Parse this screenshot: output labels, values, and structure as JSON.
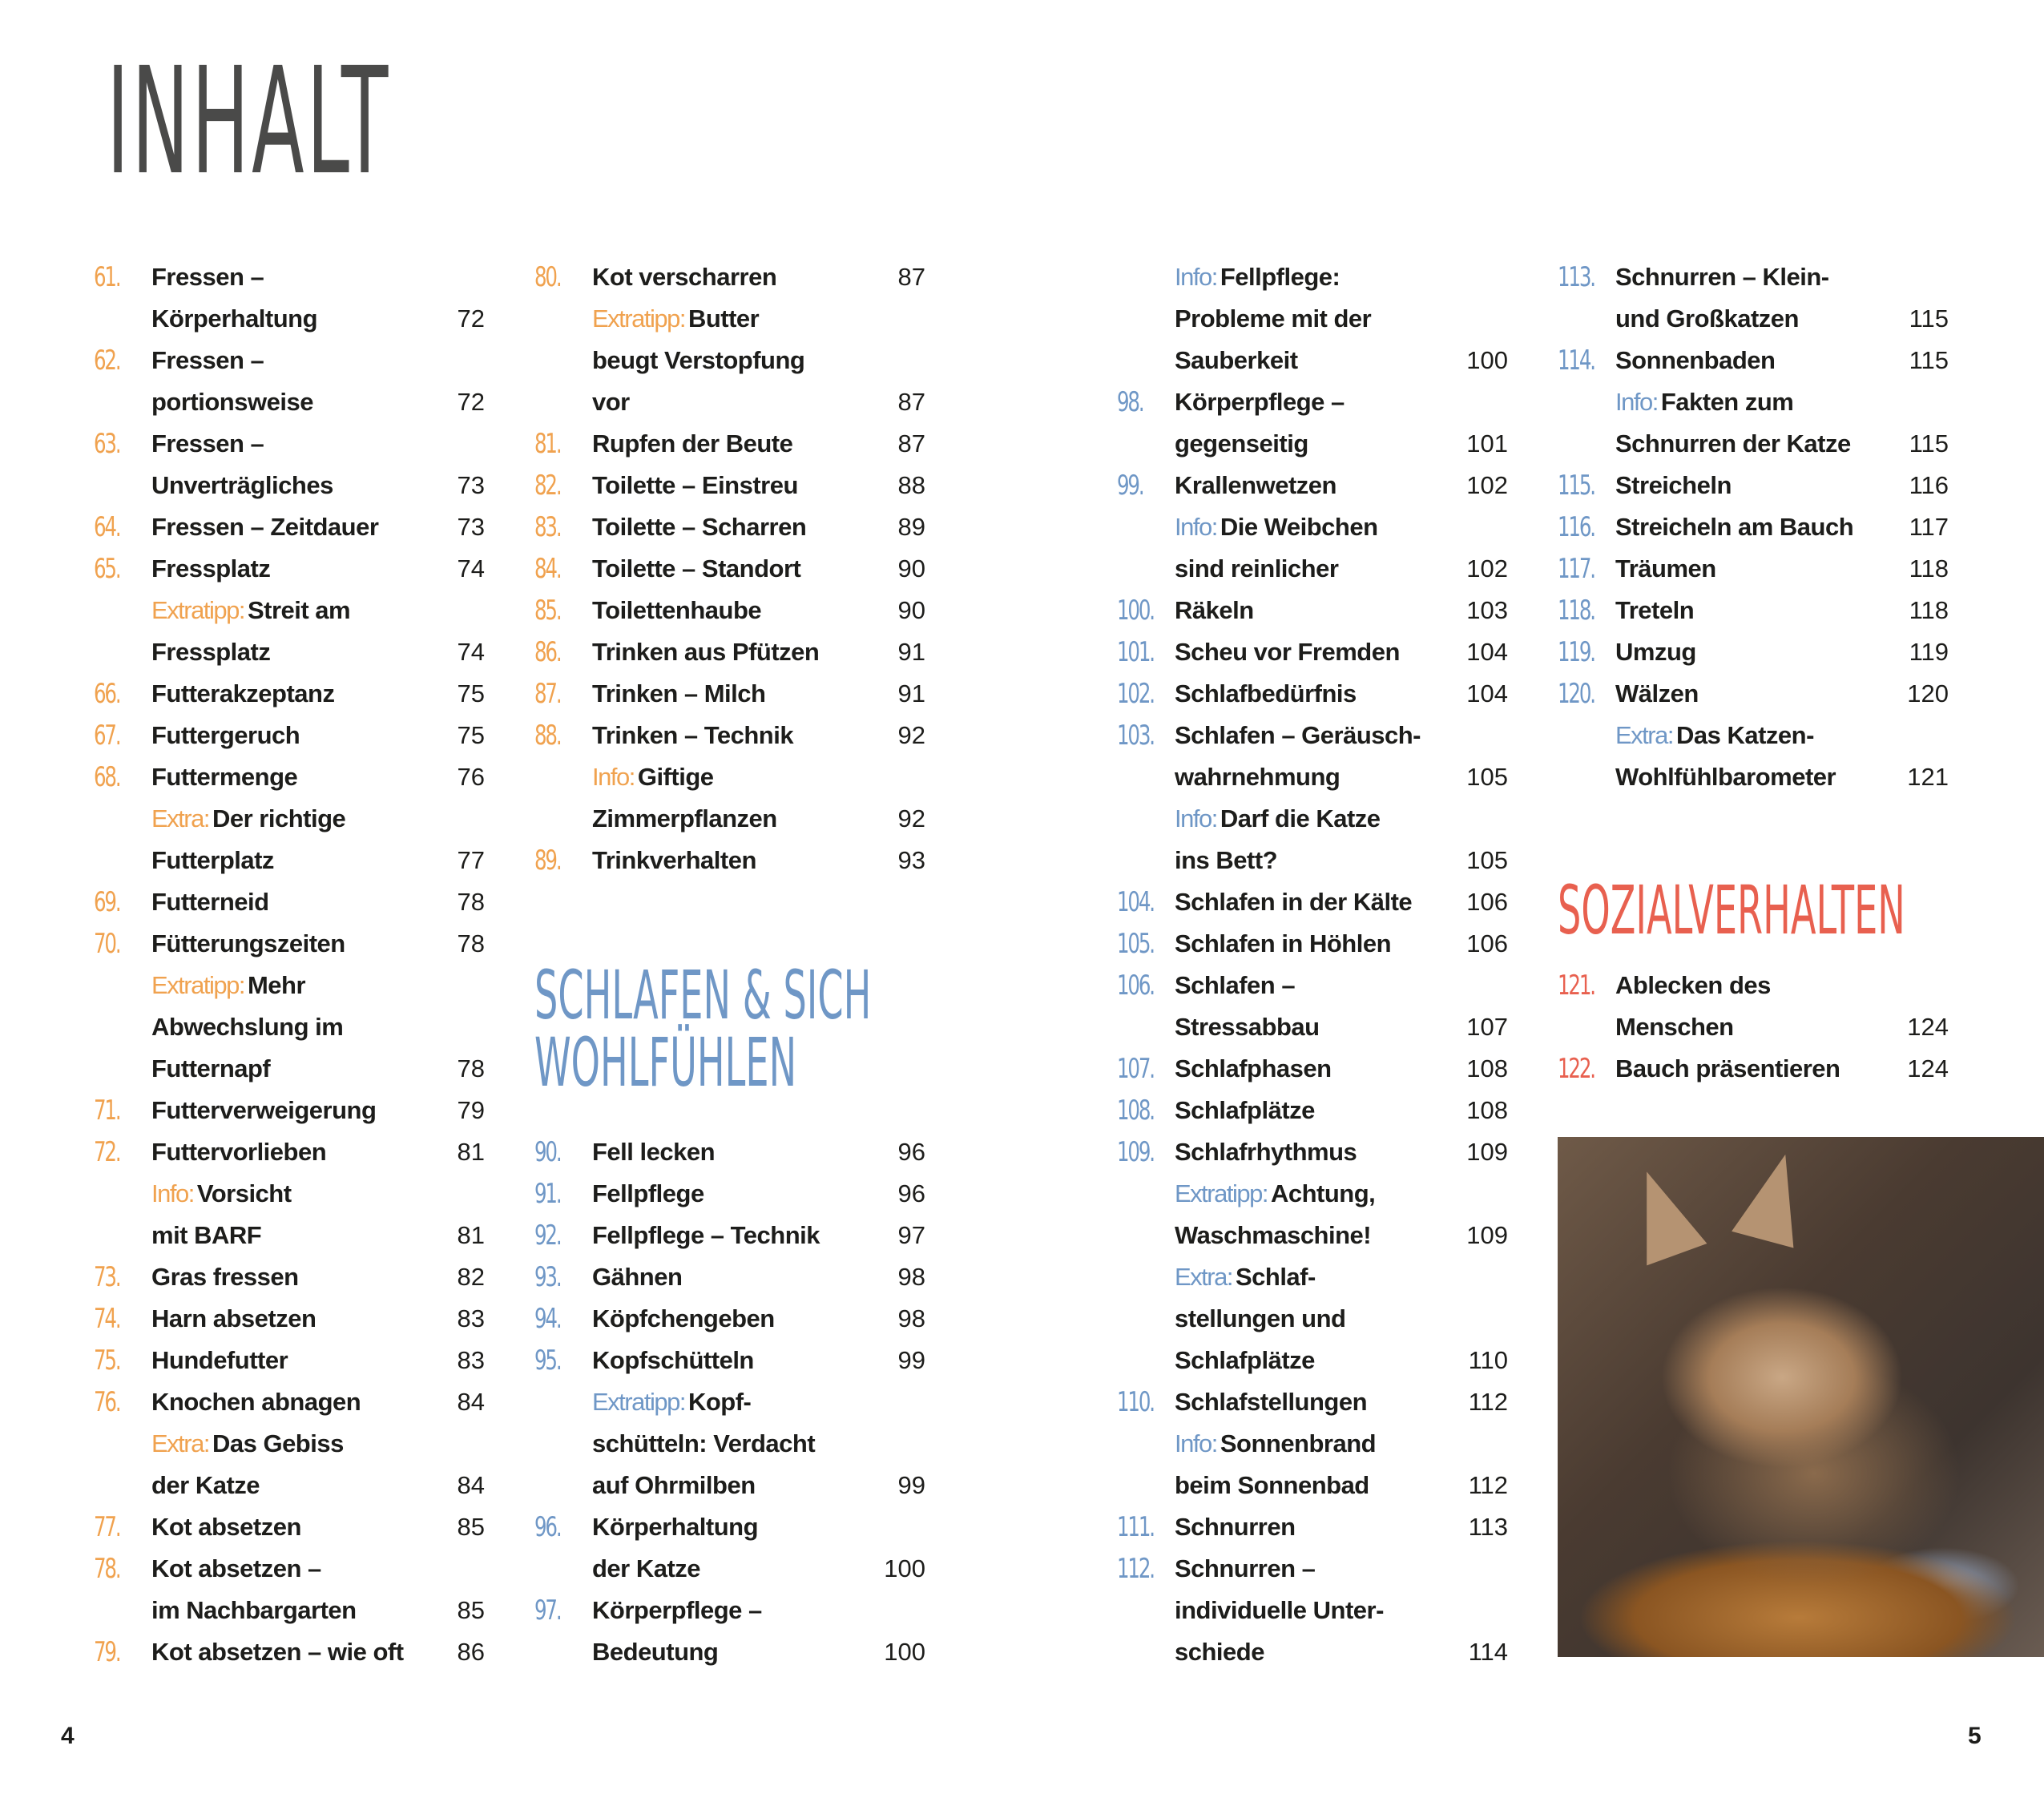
{
  "title": "INHALT",
  "colors": {
    "orange": "#f0a24f",
    "blue": "#6f97c6",
    "red": "#e8604f",
    "title": "#4a4a49",
    "text": "#1d1d1b"
  },
  "folios": {
    "left": "4",
    "right": "5"
  },
  "photo": {
    "icon": "cat-in-basket-photo"
  },
  "columns": [
    {
      "sections": [
        {
          "color": "orange",
          "entries": [
            {
              "num": "61.",
              "lines": [
                "Fressen –",
                "Körperhaltung"
              ],
              "page": "72"
            },
            {
              "num": "62.",
              "lines": [
                "Fressen –",
                "portionsweise"
              ],
              "page": "72"
            },
            {
              "num": "63.",
              "lines": [
                "Fressen –",
                "Unverträgliches"
              ],
              "page": "73"
            },
            {
              "num": "64.",
              "lines": [
                "Fressen – Zeitdauer"
              ],
              "page": "73"
            },
            {
              "num": "65.",
              "lines": [
                "Fressplatz"
              ],
              "page": "74"
            },
            {
              "tag": "Extratipp:",
              "lines": [
                "Streit am",
                "Fressplatz"
              ],
              "page": "74"
            },
            {
              "num": "66.",
              "lines": [
                "Futterakzeptanz"
              ],
              "page": "75"
            },
            {
              "num": "67.",
              "lines": [
                "Futtergeruch"
              ],
              "page": "75"
            },
            {
              "num": "68.",
              "lines": [
                "Futtermenge"
              ],
              "page": "76"
            },
            {
              "tag": "Extra:",
              "lines": [
                "Der richtige",
                "Futterplatz"
              ],
              "page": "77"
            },
            {
              "num": "69.",
              "lines": [
                "Futterneid"
              ],
              "page": "78"
            },
            {
              "num": "70.",
              "lines": [
                "Fütterungszeiten"
              ],
              "page": "78"
            },
            {
              "tag": "Extratipp:",
              "lines": [
                "Mehr",
                "Abwechslung im",
                "Futternapf"
              ],
              "page": "78"
            },
            {
              "num": "71.",
              "lines": [
                "Futterverweigerung"
              ],
              "page": "79"
            },
            {
              "num": "72.",
              "lines": [
                "Futtervorlieben"
              ],
              "page": "81"
            },
            {
              "tag": "Info:",
              "lines": [
                "Vorsicht",
                "mit BARF"
              ],
              "page": "81"
            },
            {
              "num": "73.",
              "lines": [
                "Gras fressen"
              ],
              "page": "82"
            },
            {
              "num": "74.",
              "lines": [
                "Harn absetzen"
              ],
              "page": "83"
            },
            {
              "num": "75.",
              "lines": [
                "Hundefutter"
              ],
              "page": "83"
            },
            {
              "num": "76.",
              "lines": [
                "Knochen abnagen"
              ],
              "page": "84"
            },
            {
              "tag": "Extra:",
              "lines": [
                "Das Gebiss",
                "der Katze"
              ],
              "page": "84"
            },
            {
              "num": "77.",
              "lines": [
                "Kot absetzen"
              ],
              "page": "85"
            },
            {
              "num": "78.",
              "lines": [
                "Kot absetzen –",
                "im Nachbargarten"
              ],
              "page": "85"
            },
            {
              "num": "79.",
              "lines": [
                "Kot absetzen – wie oft"
              ],
              "page": "86"
            }
          ]
        }
      ]
    },
    {
      "sections": [
        {
          "color": "orange",
          "entries": [
            {
              "num": "80.",
              "lines": [
                "Kot verscharren"
              ],
              "page": "87"
            },
            {
              "tag": "Extratipp:",
              "lines": [
                "Butter",
                "beugt Verstopfung",
                "vor"
              ],
              "page": "87"
            },
            {
              "num": "81.",
              "lines": [
                "Rupfen der Beute"
              ],
              "page": "87"
            },
            {
              "num": "82.",
              "lines": [
                "Toilette – Einstreu"
              ],
              "page": "88"
            },
            {
              "num": "83.",
              "lines": [
                "Toilette – Scharren"
              ],
              "page": "89"
            },
            {
              "num": "84.",
              "lines": [
                "Toilette – Standort"
              ],
              "page": "90"
            },
            {
              "num": "85.",
              "lines": [
                "Toilettenhaube"
              ],
              "page": "90"
            },
            {
              "num": "86.",
              "lines": [
                "Trinken aus Pfützen"
              ],
              "page": "91"
            },
            {
              "num": "87.",
              "lines": [
                "Trinken – Milch"
              ],
              "page": "91"
            },
            {
              "num": "88.",
              "lines": [
                "Trinken – Technik"
              ],
              "page": "92"
            },
            {
              "tag": "Info:",
              "lines": [
                "Giftige",
                "Zimmerpflanzen"
              ],
              "page": "92"
            },
            {
              "num": "89.",
              "lines": [
                "Trinkverhalten"
              ],
              "page": "93"
            }
          ]
        },
        {
          "color": "blue",
          "heading": [
            "SCHLAFEN & SICH",
            "WOHLFÜHLEN"
          ],
          "entries": [
            {
              "num": "90.",
              "lines": [
                "Fell lecken"
              ],
              "page": "96"
            },
            {
              "num": "91.",
              "lines": [
                "Fellpflege"
              ],
              "page": "96"
            },
            {
              "num": "92.",
              "lines": [
                "Fellpflege – Technik"
              ],
              "page": "97"
            },
            {
              "num": "93.",
              "lines": [
                "Gähnen"
              ],
              "page": "98"
            },
            {
              "num": "94.",
              "lines": [
                "Köpfchengeben"
              ],
              "page": "98"
            },
            {
              "num": "95.",
              "lines": [
                "Kopfschütteln"
              ],
              "page": "99"
            },
            {
              "tag": "Extratipp:",
              "lines": [
                "Kopf-",
                "schütteln: Verdacht",
                "auf Ohrmilben"
              ],
              "page": "99"
            },
            {
              "num": "96.",
              "lines": [
                "Körperhaltung",
                "der Katze"
              ],
              "page": "100"
            },
            {
              "num": "97.",
              "lines": [
                "Körperpflege –",
                "Bedeutung"
              ],
              "page": "100"
            }
          ]
        }
      ]
    },
    {
      "sections": [
        {
          "color": "blue",
          "entries": [
            {
              "tag": "Info:",
              "lines": [
                "Fellpflege:",
                "Probleme mit der",
                "Sauberkeit"
              ],
              "page": "100"
            },
            {
              "num": "98.",
              "lines": [
                "Körperpflege –",
                "gegenseitig"
              ],
              "page": "101"
            },
            {
              "num": "99.",
              "lines": [
                "Krallenwetzen"
              ],
              "page": "102"
            },
            {
              "tag": "Info:",
              "lines": [
                "Die Weibchen",
                "sind reinlicher"
              ],
              "page": "102"
            },
            {
              "num": "100.",
              "lines": [
                "Räkeln"
              ],
              "page": "103"
            },
            {
              "num": "101.",
              "lines": [
                "Scheu vor Fremden"
              ],
              "page": "104"
            },
            {
              "num": "102.",
              "lines": [
                "Schlafbedürfnis"
              ],
              "page": "104"
            },
            {
              "num": "103.",
              "lines": [
                "Schlafen – Geräusch-",
                "wahrnehmung"
              ],
              "page": "105"
            },
            {
              "tag": "Info:",
              "lines": [
                "Darf die Katze",
                "ins Bett?"
              ],
              "page": "105"
            },
            {
              "num": "104.",
              "lines": [
                "Schlafen in der Kälte"
              ],
              "page": "106"
            },
            {
              "num": "105.",
              "lines": [
                "Schlafen in Höhlen"
              ],
              "page": "106"
            },
            {
              "num": "106.",
              "lines": [
                "Schlafen –",
                "Stressabbau"
              ],
              "page": "107"
            },
            {
              "num": "107.",
              "lines": [
                "Schlafphasen"
              ],
              "page": "108"
            },
            {
              "num": "108.",
              "lines": [
                "Schlafplätze"
              ],
              "page": "108"
            },
            {
              "num": "109.",
              "lines": [
                "Schlafrhythmus"
              ],
              "page": "109"
            },
            {
              "tag": "Extratipp:",
              "lines": [
                "Achtung,",
                "Waschmaschine!"
              ],
              "page": "109"
            },
            {
              "tag": "Extra:",
              "lines": [
                "Schlaf-",
                "stellungen und",
                "Schlafplätze"
              ],
              "page": "110"
            },
            {
              "num": "110.",
              "lines": [
                "Schlafstellungen"
              ],
              "page": "112"
            },
            {
              "tag": "Info:",
              "lines": [
                "Sonnenbrand",
                "beim Sonnenbad"
              ],
              "page": "112"
            },
            {
              "num": "111.",
              "lines": [
                "Schnurren"
              ],
              "page": "113"
            },
            {
              "num": "112.",
              "lines": [
                "Schnurren –",
                "individuelle Unter-",
                "schiede"
              ],
              "page": "114"
            }
          ]
        }
      ]
    },
    {
      "sections": [
        {
          "color": "blue",
          "entries": [
            {
              "num": "113.",
              "lines": [
                "Schnurren – Klein-",
                "und Großkatzen"
              ],
              "page": "115"
            },
            {
              "num": "114.",
              "lines": [
                "Sonnenbaden"
              ],
              "page": "115"
            },
            {
              "tag": "Info:",
              "lines": [
                "Fakten zum",
                "Schnurren der Katze"
              ],
              "page": "115"
            },
            {
              "num": "115.",
              "lines": [
                "Streicheln"
              ],
              "page": "116"
            },
            {
              "num": "116.",
              "lines": [
                "Streicheln am Bauch"
              ],
              "page": "117"
            },
            {
              "num": "117.",
              "lines": [
                "Träumen"
              ],
              "page": "118"
            },
            {
              "num": "118.",
              "lines": [
                "Treteln"
              ],
              "page": "118"
            },
            {
              "num": "119.",
              "lines": [
                "Umzug"
              ],
              "page": "119"
            },
            {
              "num": "120.",
              "lines": [
                "Wälzen"
              ],
              "page": "120"
            },
            {
              "tag": "Extra:",
              "lines": [
                "Das Katzen-",
                "Wohlfühlbarometer"
              ],
              "page": "121"
            }
          ]
        },
        {
          "color": "red",
          "heading": [
            "SOZIALVERHALTEN"
          ],
          "entries": [
            {
              "num": "121.",
              "lines": [
                "Ablecken des",
                "Menschen"
              ],
              "page": "124"
            },
            {
              "num": "122.",
              "lines": [
                "Bauch präsentieren"
              ],
              "page": "124"
            }
          ]
        }
      ]
    }
  ]
}
